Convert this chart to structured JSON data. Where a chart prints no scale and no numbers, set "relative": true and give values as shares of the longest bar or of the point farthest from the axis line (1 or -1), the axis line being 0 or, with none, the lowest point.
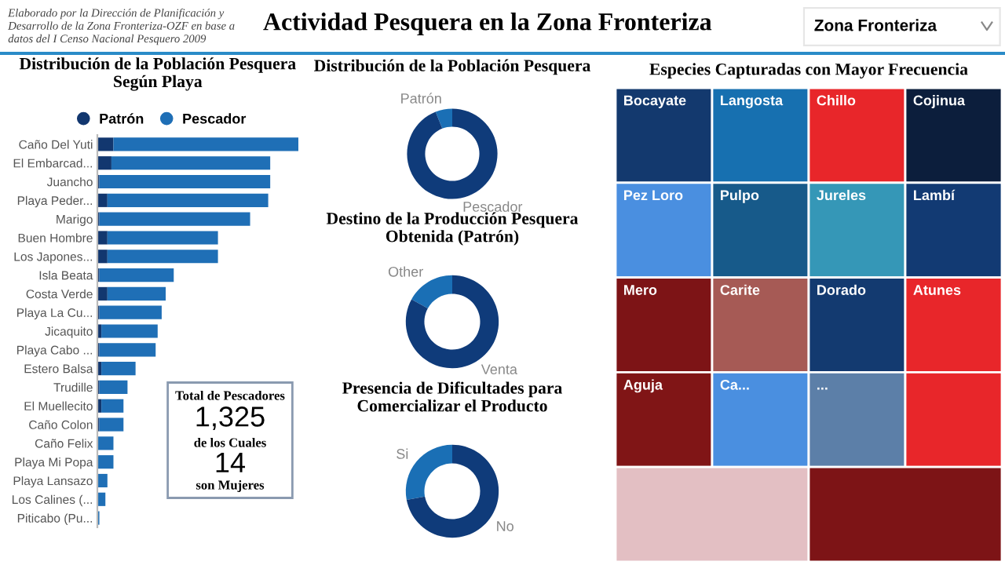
{
  "chart_data": [
    {
      "type": "other",
      "title": "Actividad Pesquera en la Zona Fronteriza",
      "annotations": [
        "Elaborado por la Dirección de Planificación y\nDesarrollo de la Zona Fronteriza-OZF en base a\ndatos del I Censo Nacional Pesquero 2009",
        "Zona Fronteriza"
      ]
    },
    {
      "type": "bar",
      "title": "Distribución de la Población Pesquera\nSegún Playa",
      "orientation": "horizontal",
      "stacked": true,
      "relative": true,
      "legend": "top",
      "tick_labels": "y",
      "categories": [
        "Caño Del Yuti",
        "El Embarcad...",
        "Juancho",
        "Playa Peder...",
        "Marigo",
        "Buen Hombre",
        "Los Japones...",
        "Isla Beata",
        "Costa Verde",
        "Playa La Cu...",
        "Jicaquito",
        "Playa Cabo ...",
        "Estero Balsa",
        "Trudille",
        "El Muellecito",
        "Caño Colon",
        "Caño Felix",
        "Playa Mi Popa",
        "Playa Lansazo",
        "Los Calines (...",
        "Piticabo (Pu..."
      ],
      "series": [
        {
          "name": "Patrón",
          "color": "#12376f",
          "values": [
            0.08,
            0.07,
            0.01,
            0.05,
            0.01,
            0.05,
            0.05,
            0.01,
            0.05,
            0.01,
            0.02,
            0.01,
            0.02,
            0.01,
            0.02,
            0.01,
            0,
            0,
            0,
            0,
            0
          ]
        },
        {
          "name": "Pescador",
          "color": "#1f6fb6",
          "values": [
            0.92,
            0.79,
            0.85,
            0.8,
            0.75,
            0.55,
            0.55,
            0.37,
            0.29,
            0.31,
            0.28,
            0.28,
            0.17,
            0.14,
            0.11,
            0.12,
            0.08,
            0.08,
            0.05,
            0.04,
            0.01
          ]
        }
      ]
    },
    {
      "type": "other",
      "annotations": [
        "Total de Pescadores",
        "1,325",
        "de los Cuales",
        "14",
        "son Mujeres"
      ]
    },
    {
      "type": "donut",
      "title": "Distribución de la Población Pesquera",
      "categories": [
        "Patrón",
        "Pescador"
      ],
      "values": [
        6,
        94
      ],
      "colors": [
        "#1a6fb5",
        "#0f3b7a"
      ]
    },
    {
      "type": "donut",
      "title": "Destino de la Producción Pesquera\nObtenida (Patrón)",
      "categories": [
        "Other",
        "Venta"
      ],
      "values": [
        17,
        83
      ],
      "colors": [
        "#1a6fb5",
        "#0f3b7a"
      ]
    },
    {
      "type": "donut",
      "title": "Presencia de Dificultades para\nComercializar el Producto",
      "categories": [
        "Si",
        "No"
      ],
      "values": [
        28,
        72
      ],
      "colors": [
        "#1a6fb5",
        "#0f3b7a"
      ]
    },
    {
      "type": "other",
      "title": "Especies Capturadas con Mayor Frecuencia",
      "categories": [
        "Bocayate",
        "Langosta",
        "Chillo",
        "Cojinua",
        "Pez Loro",
        "Pulpo",
        "Jureles",
        "Lambí",
        "Mero",
        "Carite",
        "Dorado",
        "Atunes",
        "Aguja",
        "Ca...",
        "...",
        null,
        null,
        null
      ],
      "colors": [
        "#13396e",
        "#1770b0",
        "#e8262a",
        "#0c1e3c",
        "#4a8fe0",
        "#175a8a",
        "#3597b7",
        "#123a73",
        "#7d1416",
        "#a65a55",
        "#133a70",
        "#e8262a",
        "#801516",
        "#4a8fe0",
        "#5c7fa8",
        "#e8262a",
        "#e3bfc3",
        "#7d1416"
      ]
    }
  ]
}
